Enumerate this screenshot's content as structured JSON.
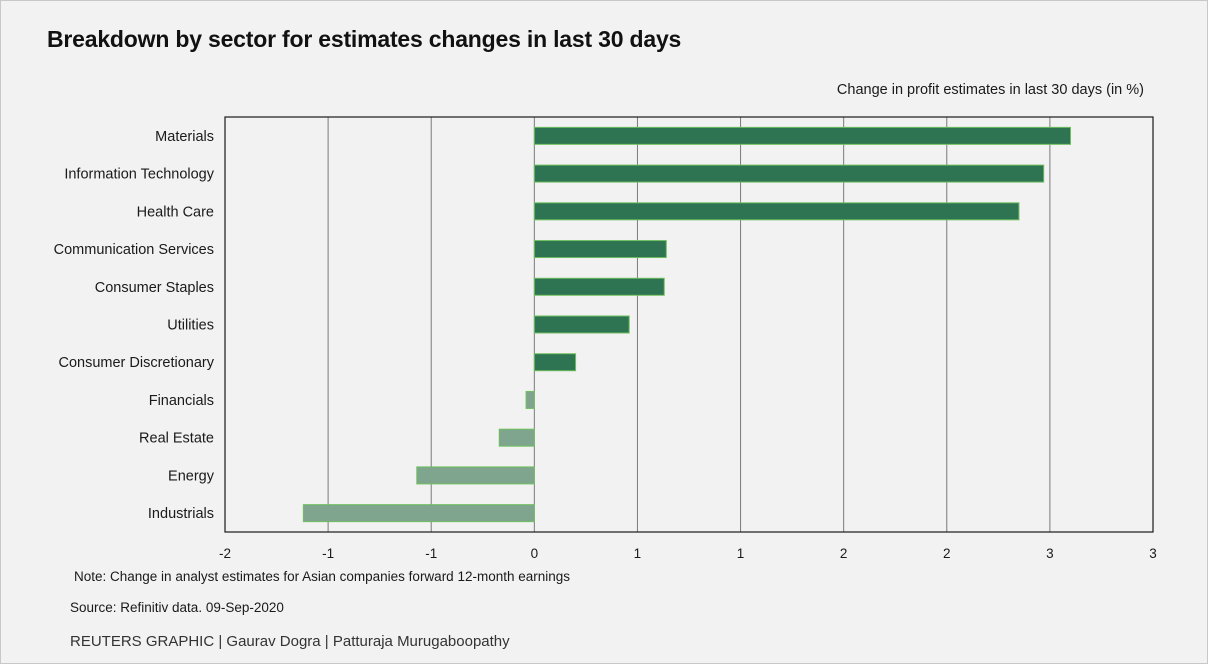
{
  "title": "Breakdown by sector for estimates changes in last 30 days",
  "axis_title": "Change in profit estimates in last 30 days (in %)",
  "note": "Note: Change in analyst estimates for Asian companies forward 12-month earnings",
  "source": "Source: Refinitiv data.  09-Sep-2020",
  "credit": "REUTERS GRAPHIC | Gaurav Dogra | Patturaja Murugaboopathy",
  "colors": {
    "positive_bar": "#2e7352",
    "negative_bar": "#7fa58e",
    "bar_outline": "#6fbf5f",
    "gridline": "#7a7a7a",
    "axis_frame": "#1a1a1a",
    "background": "#f2f2f2"
  },
  "chart_data": {
    "type": "bar",
    "orientation": "horizontal",
    "categories": [
      "Materials",
      "Information Technology",
      "Health Care",
      "Communication Services",
      "Consumer Staples",
      "Utilities",
      "Consumer Discretionary",
      "Financials",
      "Real Estate",
      "Energy",
      "Industrials"
    ],
    "values": [
      2.6,
      2.47,
      2.35,
      0.64,
      0.63,
      0.46,
      0.2,
      -0.04,
      -0.17,
      -0.57,
      -1.12
    ],
    "xlim": [
      -1.5,
      3
    ],
    "tick_values": [
      -1.5,
      -1,
      -0.5,
      0,
      0.5,
      1,
      1.5,
      2,
      2.5,
      3
    ],
    "tick_labels": [
      "-2",
      "-1",
      "-1",
      "0",
      "1",
      "1",
      "2",
      "2",
      "3",
      "3"
    ],
    "grid": "vertical",
    "xlabel": "Change in profit estimates in last 30 days (in %)",
    "ylabel": ""
  }
}
